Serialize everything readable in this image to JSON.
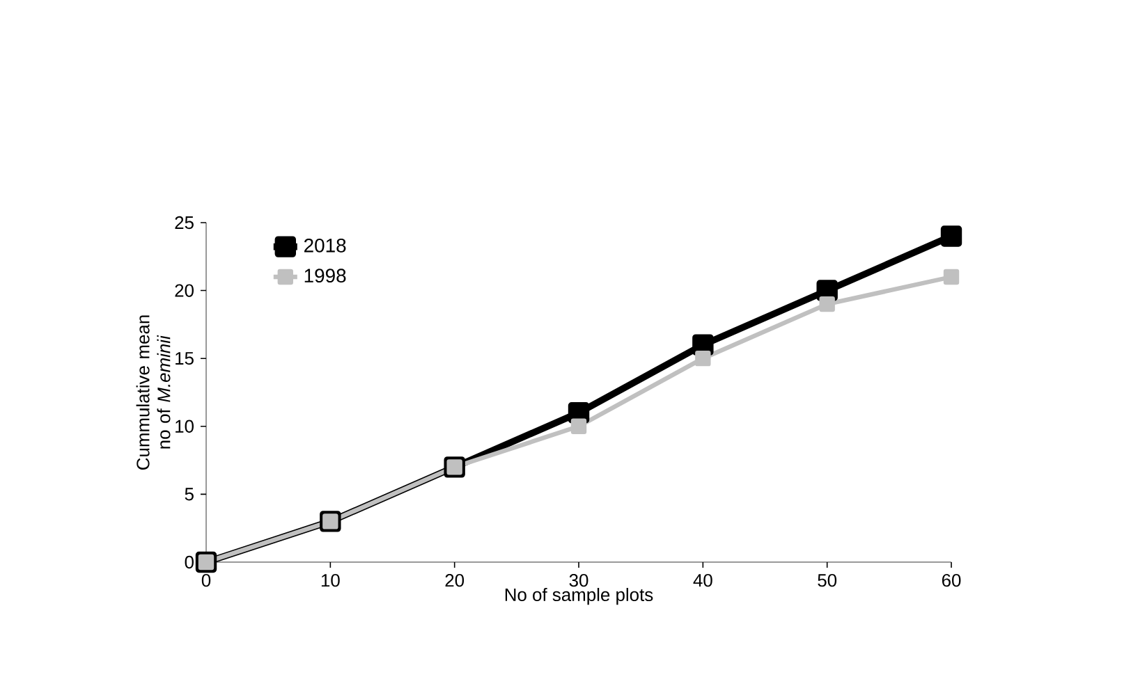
{
  "chart_data": {
    "type": "line",
    "xlabel": "No of sample plots",
    "ylabel": "Cummulative mean no of *M.eminii*",
    "x": [
      0,
      10,
      20,
      30,
      40,
      50,
      60
    ],
    "series": [
      {
        "name": "2018",
        "color": "#000000",
        "values": [
          0,
          3,
          7,
          11,
          16,
          20,
          24
        ]
      },
      {
        "name": "1998",
        "color": "#c0c0c0",
        "values": [
          0,
          3,
          7,
          10,
          15,
          19,
          21
        ]
      }
    ],
    "xlim": [
      0,
      60
    ],
    "xticks": [
      0,
      10,
      20,
      30,
      40,
      50,
      60
    ],
    "ylim": [
      0,
      25
    ],
    "yticks": [
      0,
      5,
      10,
      15,
      20,
      25
    ],
    "marker": "square",
    "line_style": "solid",
    "legend": "top left",
    "grid": false
  }
}
